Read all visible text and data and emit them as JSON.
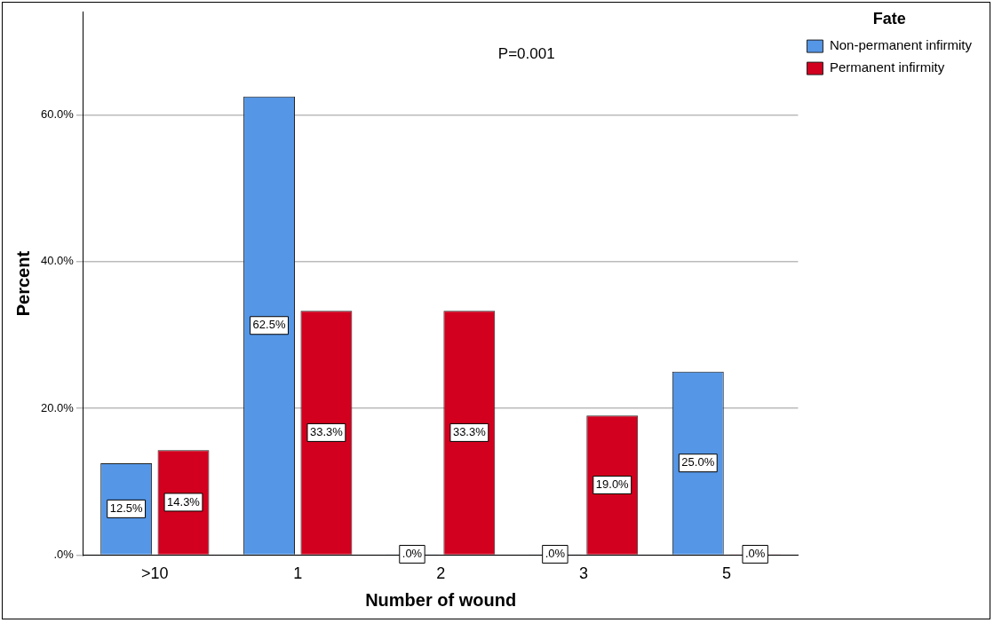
{
  "chart_data": {
    "type": "bar",
    "xlabel": "Number of wound",
    "ylabel": "Percent",
    "legend_title": "Fate",
    "legend": "top right",
    "categories": [
      ">10",
      "1",
      "2",
      "3",
      "5"
    ],
    "series": [
      {
        "name": "Non-permanent infirmity",
        "color": "#5596e6",
        "values": [
          12.5,
          62.5,
          0,
          0,
          25.0
        ],
        "value_labels": [
          "12.5%",
          "62.5%",
          ".0%",
          ".0%",
          "25.0%"
        ]
      },
      {
        "name": "Permanent infirmity",
        "color": "#d2001e",
        "values": [
          14.3,
          33.3,
          33.3,
          19.0,
          0
        ],
        "value_labels": [
          "14.3%",
          "33.3%",
          "33.3%",
          "19.0%",
          ".0%"
        ]
      }
    ],
    "ylim": [
      0,
      74
    ],
    "yticks": [
      {
        "value": 0,
        "label": ".0%"
      },
      {
        "value": 20,
        "label": "20.0%"
      },
      {
        "value": 40,
        "label": "40.0%"
      },
      {
        "value": 60,
        "label": "60.0%"
      }
    ],
    "grid": "y",
    "annotations": [
      "P=0.001"
    ]
  }
}
